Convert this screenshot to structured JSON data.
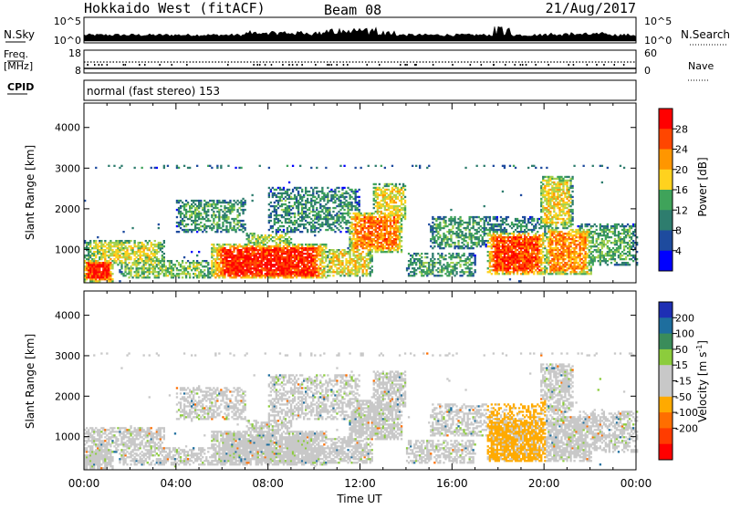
{
  "header": {
    "station": "Hokkaido West (fitACF)",
    "beam": "Beam 08",
    "date": "21/Aug/2017"
  },
  "top_panels": {
    "nsky_label": "N.Sky",
    "nsky_ticks": [
      "10^5",
      "10^0"
    ],
    "nsearch_label": "N.Search",
    "nsearch_ticks": [
      "10^5",
      "10^0"
    ],
    "freq_label_1": "Freq.",
    "freq_label_2": "[MHz]",
    "freq_ticks": [
      "18",
      "8"
    ],
    "nave_label": "Nave",
    "nave_ticks": [
      "60",
      "0"
    ],
    "cpid_label": "CPID",
    "cpid_text": "normal (fast stereo) 153"
  },
  "colors": {
    "power_scale": [
      "#0000ff",
      "#1e4b9e",
      "#2e7d6e",
      "#3fa35a",
      "#a6d250",
      "#ffd21e",
      "#ff9600",
      "#ff4600",
      "#ff0000"
    ],
    "velocity_scale": [
      "#1e2fb4",
      "#1e6e9e",
      "#3a8c5a",
      "#8ccc3c",
      "#c8c8c8",
      "#c8c8c8",
      "#ffaa00",
      "#ff6e00",
      "#ff3c00",
      "#ff0000"
    ]
  },
  "chart_data": [
    {
      "type": "heatmap",
      "name": "power",
      "xlabel": "Time UT",
      "ylabel": "Slant Range [km]",
      "x_ticks": [
        "00:00",
        "04:00",
        "08:00",
        "12:00",
        "16:00",
        "20:00",
        "00:00"
      ],
      "xlim": [
        0,
        24
      ],
      "ylim": [
        180,
        4600
      ],
      "y_ticks": [
        "1000",
        "2000",
        "3000",
        "4000"
      ],
      "colorbar_label": "Power [dB]",
      "colorbar_ticks": [
        "4",
        "8",
        "12",
        "16",
        "20",
        "24",
        "28"
      ],
      "colorbar_range": [
        0,
        32
      ]
    },
    {
      "type": "heatmap",
      "name": "velocity",
      "xlabel": "Time UT",
      "ylabel": "Slant Range [km]",
      "x_ticks": [
        "00:00",
        "04:00",
        "08:00",
        "12:00",
        "16:00",
        "20:00",
        "00:00"
      ],
      "xlim": [
        0,
        24
      ],
      "ylim": [
        180,
        4600
      ],
      "y_ticks": [
        "1000",
        "2000",
        "3000",
        "4000"
      ],
      "colorbar_label": "Velocity [m s",
      "colorbar_label_sup": "-1",
      "colorbar_label_end": "]",
      "colorbar_ticks": [
        "200",
        "100",
        "50",
        "15",
        "-15",
        "-50",
        "-100",
        "-200"
      ]
    }
  ]
}
